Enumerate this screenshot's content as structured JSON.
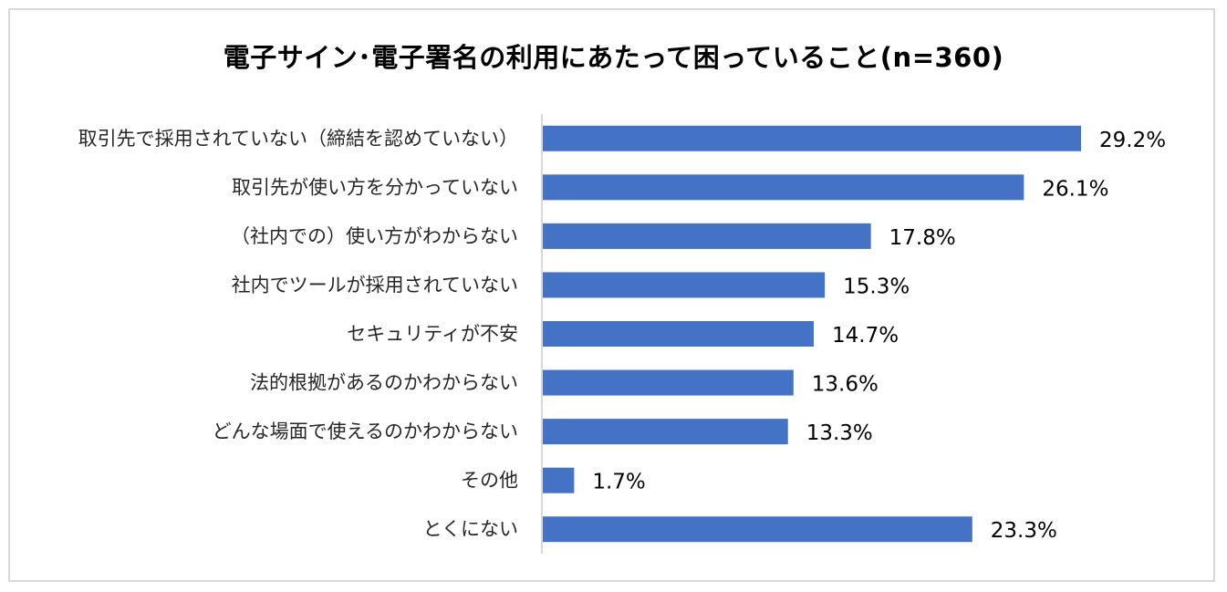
{
  "chart_data": {
    "type": "bar",
    "orientation": "horizontal",
    "title": "電子サイン･電子署名の利用にあたって困っていること(n=360)",
    "categories": [
      "取引先で採用されていない（締結を認めていない）",
      "取引先が使い方を分かっていない",
      "（社内での）使い方がわからない",
      "社内でツールが採用されていない",
      "セキュリティが不安",
      "法的根拠があるのかわからない",
      "どんな場面で使えるのかわからない",
      "その他",
      "とくにない"
    ],
    "values": [
      29.2,
      26.1,
      17.8,
      15.3,
      14.7,
      13.6,
      13.3,
      1.7,
      23.3
    ],
    "data_labels": [
      "29.2%",
      "26.1%",
      "17.8%",
      "15.3%",
      "14.7%",
      "13.6%",
      "13.3%",
      "1.7%",
      "23.3%"
    ],
    "unit": "%",
    "xlim": [
      0,
      33
    ],
    "grid": false,
    "legend": "none",
    "bar_color": "#4472c4",
    "axis_color": "#d9d9d9"
  }
}
